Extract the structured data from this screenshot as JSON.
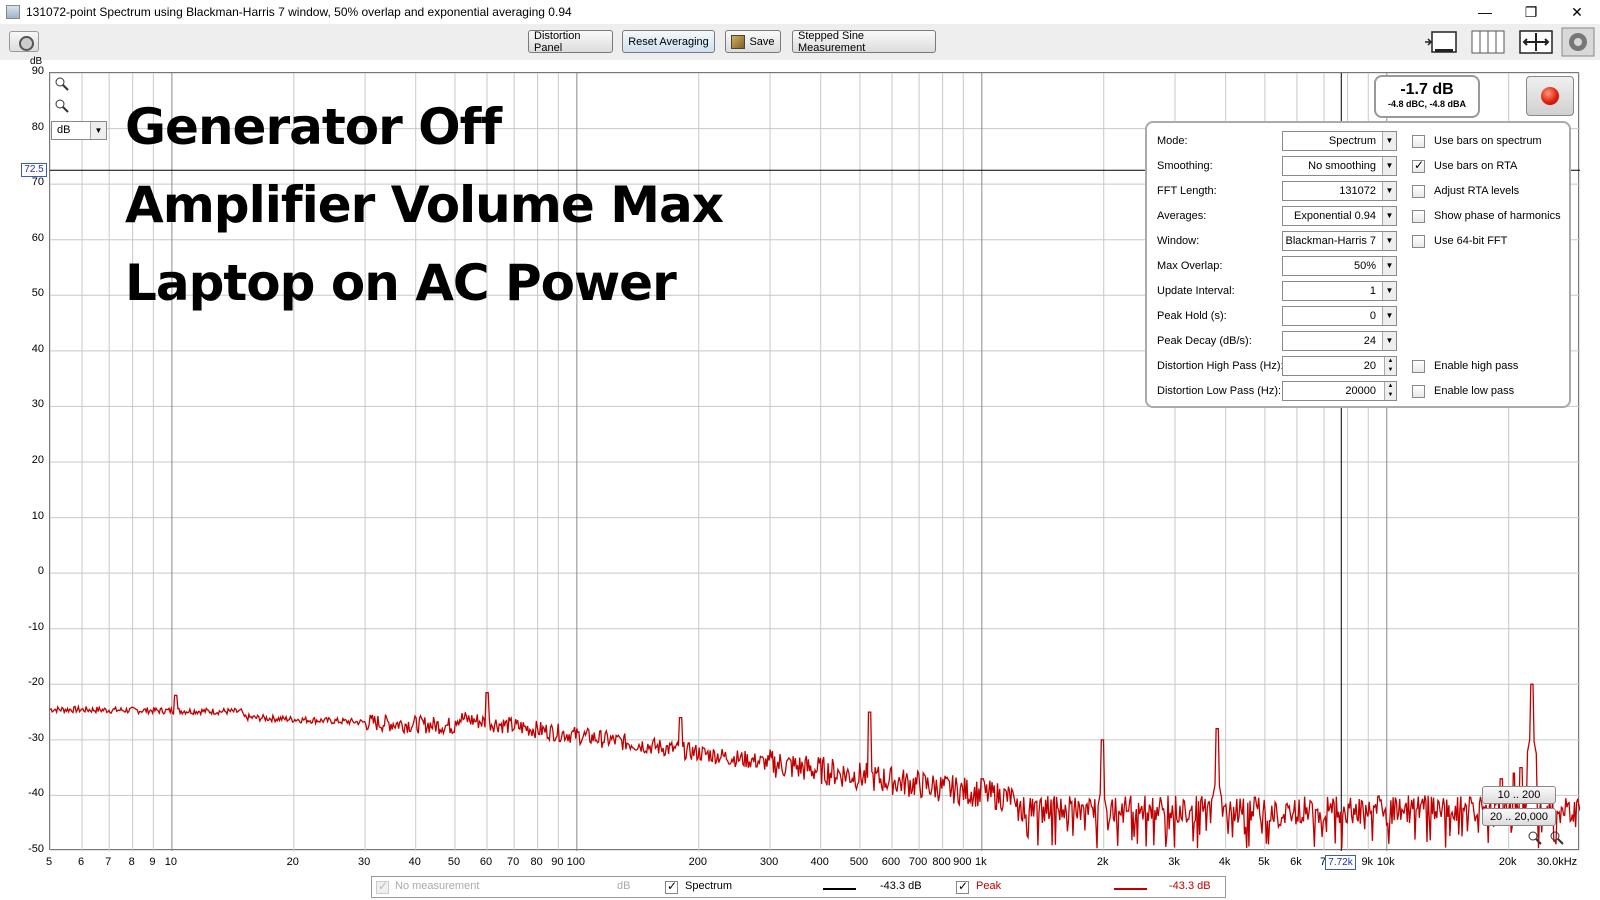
{
  "window": {
    "title": "131072-point Spectrum using Blackman-Harris 7 window, 50% overlap and exponential averaging 0.94",
    "minimize": "—",
    "restore": "❐",
    "close": "✕"
  },
  "toolbar": {
    "distortion_panel": "Distortion Panel",
    "reset_averaging": "Reset Averaging",
    "save": "Save",
    "stepped_sine": "Stepped Sine Measurement"
  },
  "graph": {
    "y_unit_label": "dB",
    "unit_select": "dB",
    "y_cursor_value": "72.5",
    "x_cursor_value": "7.72k",
    "y_ticks": [
      "90",
      "80",
      "70",
      "60",
      "50",
      "40",
      "30",
      "20",
      "10",
      "0",
      "-10",
      "-20",
      "-30",
      "-40",
      "-50"
    ],
    "x_ticks": [
      "5",
      "6",
      "7",
      "8",
      "9",
      "10",
      "20",
      "30",
      "40",
      "50",
      "60",
      "70",
      "80",
      "90",
      "100",
      "200",
      "300",
      "400",
      "500",
      "600",
      "700",
      "800",
      "900",
      "1k",
      "2k",
      "3k",
      "4k",
      "5k",
      "6k",
      "7",
      "9k",
      "10k",
      "20k",
      "30.0kHz"
    ],
    "annotations": [
      "Generator Off",
      "Amplifier Volume Max",
      "Laptop on AC Power"
    ],
    "level_main": "-1.7 dB",
    "level_sub": "-4.8 dBC, -4.8 dBA",
    "range_buttons": [
      "10 .. 200",
      "20 .. 20,000"
    ],
    "colors": {
      "trace": "#c00000",
      "cursor": "#3a58c8",
      "grid": "#cccccc"
    }
  },
  "panel": {
    "rows": [
      {
        "label": "Mode:",
        "value": "Spectrum",
        "control": "select"
      },
      {
        "label": "Smoothing:",
        "value": "No  smoothing",
        "control": "select"
      },
      {
        "label": "FFT Length:",
        "value": "131072",
        "control": "select"
      },
      {
        "label": "Averages:",
        "value": "Exponential 0.94",
        "control": "select"
      },
      {
        "label": "Window:",
        "value": "Blackman-Harris 7",
        "control": "select"
      },
      {
        "label": "Max Overlap:",
        "value": "50%",
        "control": "select"
      },
      {
        "label": "Update Interval:",
        "value": "1",
        "control": "select"
      },
      {
        "label": "Peak Hold (s):",
        "value": "0",
        "control": "select"
      },
      {
        "label": "Peak Decay (dB/s):",
        "value": "24",
        "control": "select"
      },
      {
        "label": "Distortion High Pass (Hz):",
        "value": "20",
        "control": "spin"
      },
      {
        "label": "Distortion Low Pass (Hz):",
        "value": "20000",
        "control": "spin"
      }
    ],
    "checks": [
      {
        "label": "Use bars on spectrum",
        "checked": false
      },
      {
        "label": "Use bars on RTA",
        "checked": true
      },
      {
        "label": "Adjust RTA levels",
        "checked": false
      },
      {
        "label": "Show phase of harmonics",
        "checked": false
      },
      {
        "label": "Use 64-bit FFT",
        "checked": false
      },
      {
        "label": "Enable high pass",
        "checked": false
      },
      {
        "label": "Enable low pass",
        "checked": false
      }
    ]
  },
  "legend": {
    "no_measurement": "No measurement",
    "no_measurement_unit": "dB",
    "spectrum": "Spectrum",
    "spectrum_value": "-43.3 dB",
    "peak": "Peak",
    "peak_value": "-43.3 dB"
  }
}
